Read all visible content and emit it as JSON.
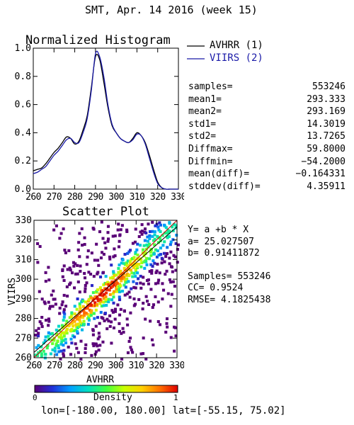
{
  "page": {
    "title": "SMT,  Apr. 14 2016 (week 15)",
    "footer": "lon=[-180.00, 180.00] lat=[-55.15, 75.02]"
  },
  "chart_data": [
    {
      "type": "line",
      "title": "Normalized Histogram",
      "xlim": [
        260,
        330
      ],
      "ylim": [
        0,
        1
      ],
      "x_ticks": [
        260,
        270,
        280,
        290,
        300,
        310,
        320,
        330
      ],
      "y_ticks": [
        "0.0",
        "0.2",
        "0.4",
        "0.6",
        "0.8",
        "1.0"
      ],
      "grid": false,
      "legend": {
        "position": "top-right",
        "entries": [
          {
            "label": "AVHRR (1)",
            "color": "#000000"
          },
          {
            "label": "VIIRS (2)",
            "color": "#1a1aa8"
          }
        ]
      },
      "series": [
        {
          "name": "AVHRR (1)",
          "color": "#000000",
          "x": [
            260,
            262,
            264,
            266,
            268,
            270,
            272,
            274,
            276,
            278,
            280,
            282,
            284,
            286,
            288,
            290,
            292,
            294,
            296,
            298,
            300,
            302,
            304,
            306,
            308,
            310,
            312,
            314,
            316,
            318,
            320,
            322,
            324,
            326,
            328,
            330
          ],
          "y": [
            0.13,
            0.14,
            0.15,
            0.18,
            0.22,
            0.26,
            0.29,
            0.33,
            0.37,
            0.36,
            0.32,
            0.34,
            0.42,
            0.52,
            0.72,
            0.94,
            0.92,
            0.76,
            0.58,
            0.45,
            0.4,
            0.36,
            0.34,
            0.33,
            0.36,
            0.4,
            0.38,
            0.33,
            0.24,
            0.14,
            0.05,
            0.01,
            0.0,
            0.0,
            0.0,
            0.0
          ]
        },
        {
          "name": "VIIRS (2)",
          "color": "#1a1aa8",
          "x": [
            260,
            262,
            264,
            266,
            268,
            270,
            272,
            274,
            276,
            278,
            280,
            282,
            284,
            286,
            288,
            290,
            292,
            294,
            296,
            298,
            300,
            302,
            304,
            306,
            308,
            310,
            312,
            314,
            316,
            318,
            320,
            322,
            324,
            326,
            328,
            330
          ],
          "y": [
            0.11,
            0.12,
            0.14,
            0.16,
            0.2,
            0.24,
            0.27,
            0.31,
            0.35,
            0.36,
            0.33,
            0.33,
            0.4,
            0.5,
            0.7,
            0.96,
            0.94,
            0.8,
            0.6,
            0.46,
            0.4,
            0.36,
            0.34,
            0.33,
            0.35,
            0.39,
            0.38,
            0.32,
            0.22,
            0.12,
            0.04,
            0.01,
            0.0,
            0.0,
            0.0,
            0.0
          ]
        }
      ],
      "stats": [
        {
          "label": "samples=",
          "value": "553246"
        },
        {
          "label": "mean1=",
          "value": "293.333"
        },
        {
          "label": "mean2=",
          "value": "293.169"
        },
        {
          "label": "std1=",
          "value": "14.3019"
        },
        {
          "label": "std2=",
          "value": "13.7265"
        },
        {
          "label": "Diffmax=",
          "value": "59.8000"
        },
        {
          "label": "Diffmin=",
          "value": "−54.2000"
        },
        {
          "label": "mean(diff)=",
          "value": "−0.164331"
        },
        {
          "label": "stddev(diff)=",
          "value": "4.35911"
        }
      ]
    },
    {
      "type": "scatter",
      "title": "Scatter Plot",
      "xlabel": "AVHRR",
      "ylabel": "VIIRS",
      "xlim": [
        260,
        330
      ],
      "ylim": [
        260,
        330
      ],
      "x_ticks": [
        260,
        270,
        280,
        290,
        300,
        310,
        320,
        330
      ],
      "y_ticks": [
        260,
        270,
        280,
        290,
        300,
        310,
        320,
        330
      ],
      "density_colormap": "rainbow (purple=0 to red=1)",
      "fit": {
        "equation": "Y= a +b * X",
        "a_text": "a= 25.027507",
        "b_text": "b= 0.91411872",
        "a": 25.027507,
        "b": 0.91411872
      },
      "stats_text": [
        "Samples= 553246",
        "CC=  0.9524",
        "RMSE= 4.1825438"
      ]
    }
  ],
  "colorbar": {
    "label": "Density",
    "min_label": "0",
    "max_label": "1",
    "colors": [
      "#5a0078",
      "#2030d8",
      "#00a0ff",
      "#00e0c0",
      "#40ff40",
      "#c8ff00",
      "#ffd000",
      "#ff7000",
      "#e00000"
    ]
  }
}
